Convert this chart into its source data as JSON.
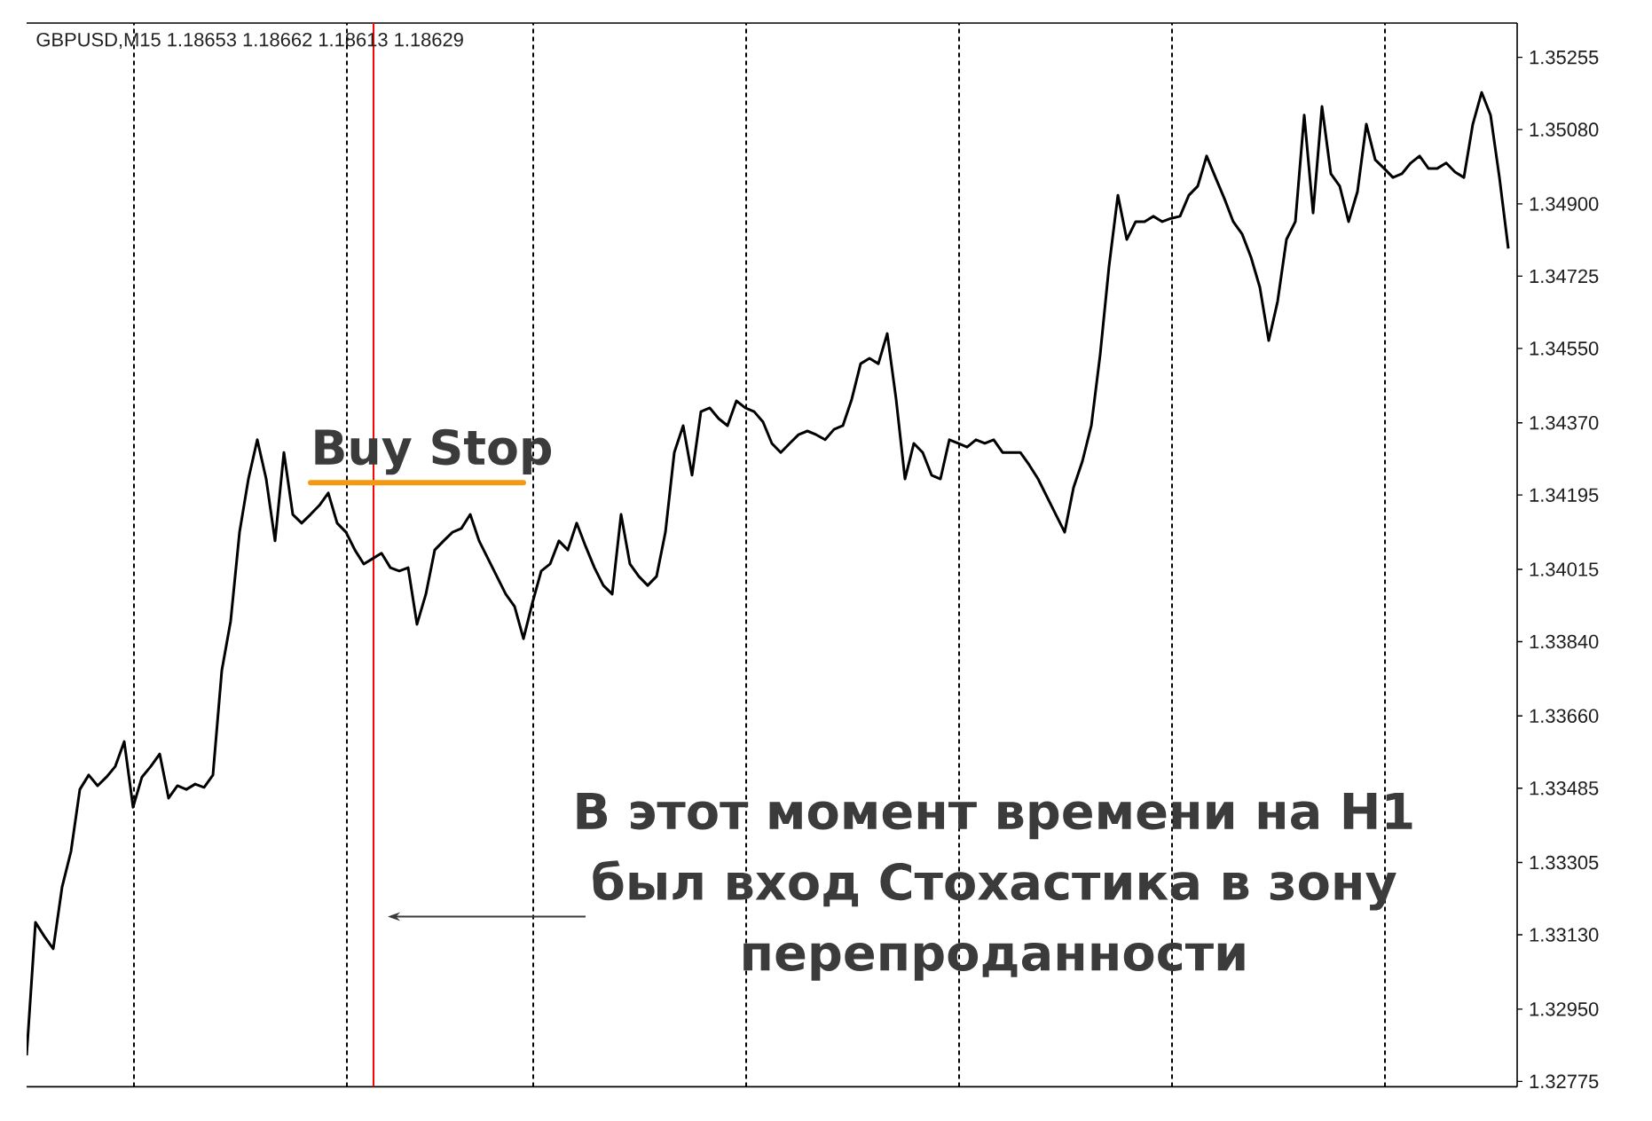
{
  "chart_data": {
    "type": "line",
    "title": "GBPUSD,M15 1.18653 1.18662 1.18613 1.18629",
    "categories": [
      null,
      null,
      null,
      null,
      null,
      null,
      null,
      null,
      null,
      null,
      null,
      null,
      null,
      null,
      null,
      null,
      null,
      null,
      null,
      null,
      null,
      null,
      null,
      null,
      null,
      null,
      null,
      null,
      null,
      null,
      null,
      null,
      null,
      null,
      null,
      null,
      null,
      null,
      null,
      null,
      null,
      null,
      null,
      null,
      null,
      null,
      null,
      null,
      null,
      null,
      null,
      null,
      null,
      null,
      null,
      null,
      null,
      null,
      null,
      null,
      null,
      null,
      null,
      null,
      null,
      null,
      null,
      null,
      null,
      null,
      null,
      null,
      null,
      null,
      null,
      null,
      null,
      null,
      null,
      null,
      null,
      null,
      null,
      null,
      null,
      null,
      null,
      null,
      null,
      null,
      null,
      null,
      null,
      null,
      null,
      null,
      null,
      null,
      null,
      null,
      null,
      null,
      null,
      null,
      null,
      null,
      null,
      null,
      null,
      null,
      null,
      null,
      null,
      null,
      null,
      null,
      null,
      null,
      null,
      null,
      null,
      null,
      null,
      null,
      null,
      null,
      null,
      null,
      null,
      null,
      null,
      null,
      null,
      null,
      null,
      null,
      null,
      null,
      null,
      null,
      null,
      null,
      null,
      null,
      null,
      null,
      null,
      null,
      null,
      null,
      null,
      null,
      null,
      null,
      null,
      null,
      null,
      null,
      null,
      null,
      null,
      null,
      null,
      null,
      null,
      null,
      null,
      null
    ],
    "series": [
      {
        "color": "#000000",
        "values": [
          1.32838,
          1.3316,
          1.33126,
          1.33096,
          1.33246,
          1.33332,
          1.33482,
          1.33517,
          1.33491,
          1.33512,
          1.33538,
          1.33598,
          1.33439,
          1.33512,
          1.33538,
          1.33568,
          1.33461,
          1.33491,
          1.33482,
          1.33495,
          1.33487,
          1.33517,
          1.3377,
          1.3389,
          1.34105,
          1.34234,
          1.34329,
          1.34234,
          1.34084,
          1.34298,
          1.34148,
          1.34127,
          1.34148,
          1.3417,
          1.342,
          1.34127,
          1.34105,
          1.34062,
          1.34028,
          1.34041,
          1.34054,
          1.34019,
          1.34011,
          1.34019,
          1.33882,
          1.33955,
          1.34062,
          1.34084,
          1.34105,
          1.34114,
          1.34148,
          1.34084,
          1.34041,
          1.33998,
          1.33955,
          1.33925,
          1.33847,
          1.33933,
          1.34011,
          1.34028,
          1.34084,
          1.34062,
          1.34127,
          1.34071,
          1.34019,
          1.33976,
          1.33955,
          1.34148,
          1.34028,
          1.33998,
          1.33976,
          1.33998,
          1.34105,
          1.34298,
          1.34363,
          1.34243,
          1.34397,
          1.34406,
          1.3438,
          1.34363,
          1.34423,
          1.34406,
          1.34397,
          1.34372,
          1.3432,
          1.34298,
          1.3432,
          1.34341,
          1.3435,
          1.34341,
          1.34329,
          1.34354,
          1.34363,
          1.34427,
          1.34513,
          1.34526,
          1.34513,
          1.34586,
          1.34427,
          1.34234,
          1.3432,
          1.34298,
          1.34243,
          1.34234,
          1.34329,
          1.3432,
          1.34311,
          1.34329,
          1.3432,
          1.34329,
          1.34298,
          1.34298,
          1.34298,
          1.34268,
          1.34234,
          1.34191,
          1.34148,
          1.34105,
          1.34213,
          1.34277,
          1.34363,
          1.34535,
          1.34749,
          1.34921,
          1.34814,
          1.34857,
          1.34857,
          1.3487,
          1.34857,
          1.34865,
          1.3487,
          1.34921,
          1.34943,
          1.35016,
          1.34964,
          1.34913,
          1.34857,
          1.34827,
          1.34771,
          1.34698,
          1.34569,
          1.34664,
          1.34814,
          1.34857,
          1.35115,
          1.34878,
          1.35136,
          1.34973,
          1.34943,
          1.34857,
          1.3493,
          1.35093,
          1.35007,
          1.34986,
          1.34964,
          1.34973,
          1.34999,
          1.35016,
          1.34986,
          1.34986,
          1.34999,
          1.34977,
          1.34964,
          1.35093,
          1.3517,
          1.35115,
          1.34964,
          1.34792
        ]
      }
    ],
    "ylim": [
      1.32762,
      1.35338
    ],
    "yticks": [
      1.32775,
      {
        "value": 1.3295,
        "label": "1.32950"
      },
      {
        "value": 1.3313,
        "label": "1.33130"
      },
      1.33305,
      1.33485,
      {
        "value": 1.3366,
        "label": "1.33660"
      },
      {
        "value": 1.3384,
        "label": "1.33840"
      },
      1.34015,
      1.34195,
      {
        "value": 1.3437,
        "label": "1.34370"
      },
      {
        "value": 1.3455,
        "label": "1.34550"
      },
      1.34725,
      {
        "value": 1.349,
        "label": "1.34900"
      },
      {
        "value": 1.3508,
        "label": "1.35080"
      },
      1.35255
    ],
    "annotations": [
      "Buy Stop",
      "В этот момент времени на H1 был вход Стохастика в зону перепроданности"
    ]
  }
}
